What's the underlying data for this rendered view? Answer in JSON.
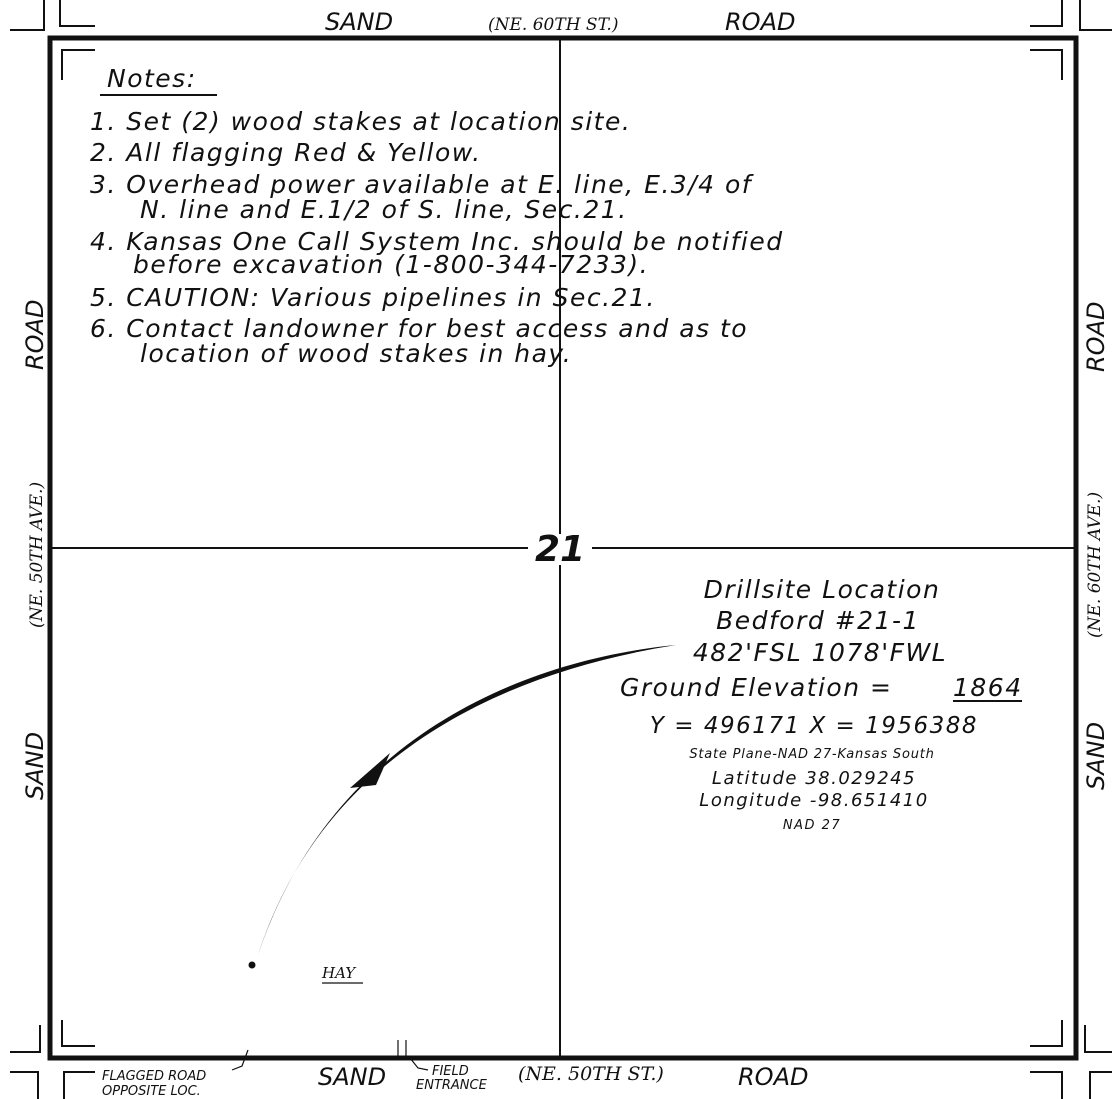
{
  "roads": {
    "top": {
      "left": "SAND",
      "middle": "(NE. 60TH ST.)",
      "right": "ROAD"
    },
    "bottom": {
      "left": "SAND",
      "middle": "(NE. 50TH ST.)",
      "right": "ROAD"
    },
    "left": {
      "upper": "ROAD",
      "middle": "(NE. 50TH AVE.)",
      "lower": "SAND"
    },
    "right": {
      "upper": "ROAD",
      "middle": "(NE. 60TH AVE.)",
      "lower": "SAND"
    }
  },
  "section_number": "21",
  "notes": {
    "heading": "Notes:",
    "items": [
      "1. Set (2) wood stakes at location site.",
      "2. All flagging Red & Yellow.",
      "3. Overhead power available at E. line, E.3/4 of",
      "N. line and E.1/2 of S. line, Sec.21.",
      "4. Kansas One Call System Inc. should be notified",
      "before excavation (1-800-344-7233).",
      "5. CAUTION: Various pipelines in Sec.21.",
      "6. Contact landowner for best access and as to",
      "location of wood stakes in hay."
    ]
  },
  "drillsite": {
    "title": "Drillsite Location",
    "well": "Bedford #21-1",
    "footage": "482'FSL  1078'FWL",
    "elevation_label": "Ground Elevation =",
    "elevation_value": "1864",
    "coords": "Y = 496171   X = 1956388",
    "plane": "State Plane-NAD 27-Kansas South",
    "latitude": "Latitude 38.029245",
    "longitude": "Longitude -98.651410",
    "datum": "NAD 27"
  },
  "labels": {
    "hay": "HAY",
    "flagged_road_1": "FLAGGED ROAD",
    "flagged_road_2": "OPPOSITE LOC.",
    "field_entrance_1": "FIELD",
    "field_entrance_2": "ENTRANCE"
  }
}
